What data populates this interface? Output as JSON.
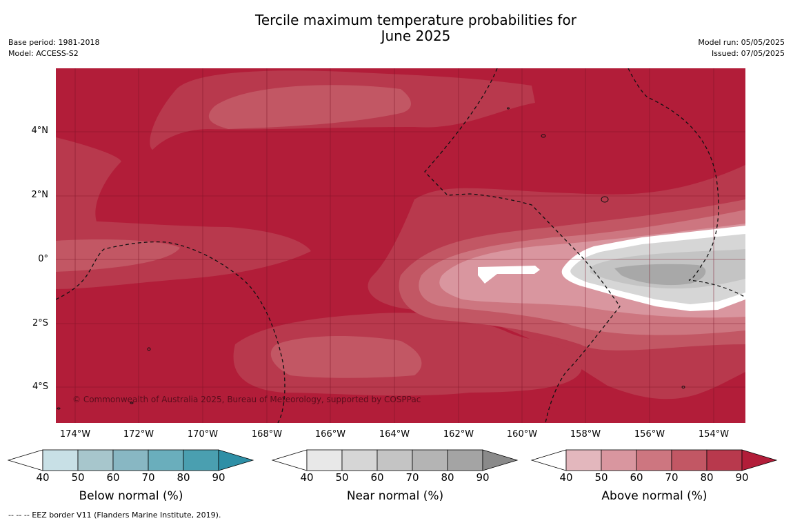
{
  "title_line1": "Tercile maximum temperature probabilities for",
  "title_line2": "June 2025",
  "meta_left": {
    "base_period": "Base period: 1981-2018",
    "model": "Model: ACCESS-S2"
  },
  "meta_right": {
    "model_run": "Model run: 05/05/2025",
    "issued": "Issued: 07/05/2025"
  },
  "map": {
    "lat_labels": [
      "4°N",
      "2°N",
      "0°",
      "2°S",
      "4°S"
    ],
    "lon_labels": [
      "174°W",
      "172°W",
      "170°W",
      "168°W",
      "166°W",
      "164°W",
      "162°W",
      "160°W",
      "158°W",
      "156°W",
      "154°W"
    ],
    "copyright": "© Commonwealth of Australia 2025, Bureau of Meteorology, supported by COSPPac",
    "base_color": "#b21d39"
  },
  "colorbars": [
    {
      "title": "Below normal (%)",
      "ticks": [
        "40",
        "50",
        "60",
        "70",
        "80",
        "90"
      ],
      "colors": [
        "#c8e0e6",
        "#a7c6cc",
        "#88b7c3",
        "#6aaebc",
        "#4a9fb0",
        "#2e8fa6"
      ]
    },
    {
      "title": "Near normal (%)",
      "ticks": [
        "40",
        "50",
        "60",
        "70",
        "80",
        "90"
      ],
      "colors": [
        "#e8e8e8",
        "#d6d6d6",
        "#c4c4c4",
        "#b4b4b4",
        "#a4a4a4",
        "#8a8a8a"
      ]
    },
    {
      "title": "Above normal (%)",
      "ticks": [
        "40",
        "50",
        "60",
        "70",
        "80",
        "90"
      ],
      "colors": [
        "#e3b7bd",
        "#d9969f",
        "#cd7680",
        "#c25764",
        "#b8394d",
        "#b21d39"
      ]
    }
  ],
  "footnote": "--  --  -- EEZ border V11 (Flanders Marine Institute, 2019)."
}
